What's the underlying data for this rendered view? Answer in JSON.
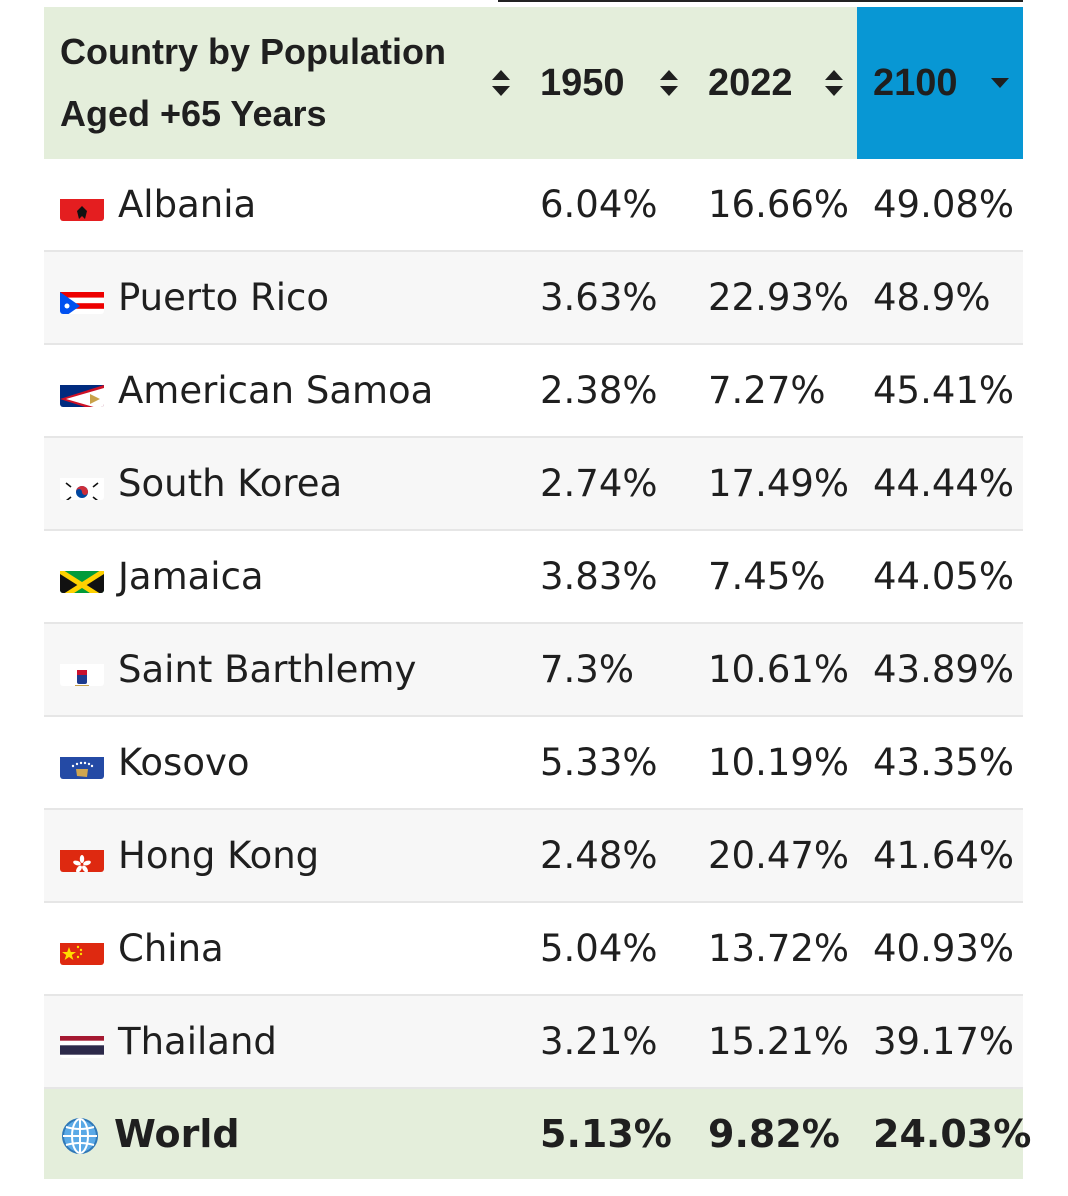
{
  "table": {
    "headers": {
      "country_line1": "Country by Population",
      "country_line2": "Aged +65 Years",
      "y1950": "1950",
      "y2022": "2022",
      "y2100": "2100"
    },
    "sort_colors": {
      "header_bg": "#e4eedb",
      "sorted_bg": "#0897d4"
    },
    "rows": [
      {
        "country": "Albania",
        "flag": "albania-flag-icon",
        "v1950": "6.04%",
        "v2022": "16.66%",
        "v2100": "49.08%"
      },
      {
        "country": "Puerto Rico",
        "flag": "puerto-rico-flag-icon",
        "v1950": "3.63%",
        "v2022": "22.93%",
        "v2100": "48.9%"
      },
      {
        "country": "American Samoa",
        "flag": "american-samoa-flag-icon",
        "v1950": "2.38%",
        "v2022": "7.27%",
        "v2100": "45.41%"
      },
      {
        "country": "South Korea",
        "flag": "south-korea-flag-icon",
        "v1950": "2.74%",
        "v2022": "17.49%",
        "v2100": "44.44%"
      },
      {
        "country": "Jamaica",
        "flag": "jamaica-flag-icon",
        "v1950": "3.83%",
        "v2022": "7.45%",
        "v2100": "44.05%"
      },
      {
        "country": "Saint Barthlemy",
        "flag": "saint-barthelemy-flag-icon",
        "v1950": "7.3%",
        "v2022": "10.61%",
        "v2100": "43.89%"
      },
      {
        "country": "Kosovo",
        "flag": "kosovo-flag-icon",
        "v1950": "5.33%",
        "v2022": "10.19%",
        "v2100": "43.35%"
      },
      {
        "country": "Hong Kong",
        "flag": "hong-kong-flag-icon",
        "v1950": "2.48%",
        "v2022": "20.47%",
        "v2100": "41.64%"
      },
      {
        "country": "China",
        "flag": "china-flag-icon",
        "v1950": "5.04%",
        "v2022": "13.72%",
        "v2100": "40.93%"
      },
      {
        "country": "Thailand",
        "flag": "thailand-flag-icon",
        "v1950": "3.21%",
        "v2022": "15.21%",
        "v2100": "39.17%"
      }
    ],
    "footer": {
      "country": "World",
      "icon": "globe-icon",
      "v1950": "5.13%",
      "v2022": "9.82%",
      "v2100": "24.03%"
    }
  }
}
